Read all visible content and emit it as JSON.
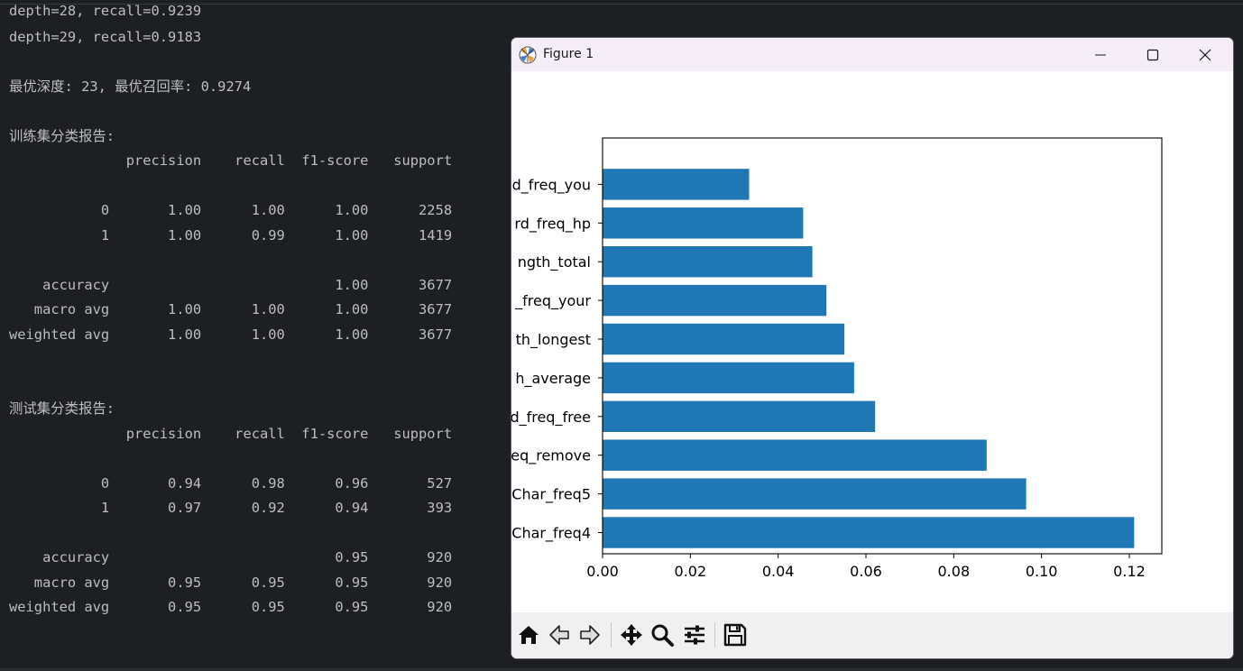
{
  "console": {
    "lines": [
      "depth=28, recall=0.9239",
      "depth=29, recall=0.9183",
      "最优深度: 23, 最优召回率: 0.9274",
      "训练集分类报告:",
      "              precision    recall  f1-score   support",
      "           0       1.00      1.00      1.00      2258",
      "           1       1.00      0.99      1.00      1419",
      "    accuracy                           1.00      3677",
      "   macro avg       1.00      1.00      1.00      3677",
      "weighted avg       1.00      1.00      1.00      3677",
      "测试集分类报告:",
      "              precision    recall  f1-score   support",
      "           0       0.94      0.98      0.96       527",
      "           1       0.97      0.92      0.94       393",
      "    accuracy                           0.95       920",
      "   macro avg       0.95      0.95      0.95       920",
      "weighted avg       0.95      0.95      0.95       920"
    ]
  },
  "window": {
    "title": "Figure 1",
    "app_icon": "matplotlib-icon",
    "controls": [
      "minimize-icon",
      "maximize-icon",
      "close-icon"
    ]
  },
  "toolbar": {
    "tools": [
      "home-icon",
      "back-arrow-icon",
      "forward-arrow-icon",
      "pan-icon",
      "zoom-icon",
      "configure-subplots-icon",
      "save-icon"
    ]
  },
  "chart_data": {
    "type": "bar",
    "orientation": "horizontal",
    "categories": [
      "d_freq_you",
      "rd_freq_hp",
      "ngth_total",
      "_freq_your",
      "th_longest",
      "h_average",
      "d_freq_free",
      "eq_remove",
      "Char_freq5",
      "Char_freq4"
    ],
    "values": [
      0.0334,
      0.0457,
      0.0478,
      0.051,
      0.0551,
      0.0573,
      0.0621,
      0.0875,
      0.0965,
      0.1211
    ],
    "xticks": [
      "0.00",
      "0.02",
      "0.04",
      "0.06",
      "0.08",
      "0.10",
      "0.12"
    ],
    "xlim": [
      0,
      0.1274
    ],
    "bar_color": "#1f77b4",
    "grid": false
  }
}
